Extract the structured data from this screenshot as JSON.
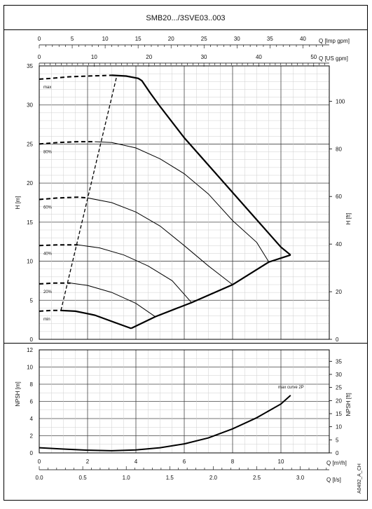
{
  "title": "SMB20.../3SVE03..003",
  "doc_code": "A0492_A_CH",
  "chart_data": [
    {
      "type": "line",
      "name": "H-Q performance chart",
      "ylabel_left": "H [m]",
      "ylabel_right": "H [ft]",
      "top_axis_1_label": "Q [Imp gpm]",
      "top_axis_2_label": "Q [US gpm]",
      "ylim": [
        0,
        35
      ],
      "xlim": [
        0,
        12
      ],
      "yticks_left": [
        0,
        5,
        10,
        15,
        20,
        25,
        30,
        35
      ],
      "yticks_right": [
        0,
        20,
        40,
        60,
        80,
        100
      ],
      "top_ticks_imp": [
        0,
        5,
        10,
        15,
        20,
        25,
        30,
        35,
        40
      ],
      "top_ticks_us": [
        0,
        10,
        20,
        30,
        40,
        50
      ],
      "grid": true,
      "curve_labels": [
        "max",
        "80%",
        "60%",
        "40%",
        "20%",
        "min"
      ],
      "series": [
        {
          "label": "max",
          "solid": [
            [
              3.0,
              33.8
            ],
            [
              3.6,
              33.7
            ],
            [
              4.1,
              33.4
            ],
            [
              4.25,
              33.1
            ],
            [
              4.6,
              31.5
            ],
            [
              5.0,
              29.8
            ],
            [
              6.0,
              25.8
            ],
            [
              7.0,
              22.3
            ],
            [
              8.0,
              18.8
            ],
            [
              9.0,
              15.3
            ],
            [
              10.0,
              11.8
            ],
            [
              10.4,
              10.8
            ]
          ],
          "dashed": [
            [
              0.0,
              33.3
            ],
            [
              0.5,
              33.4
            ],
            [
              1.2,
              33.6
            ],
            [
              2.0,
              33.7
            ],
            [
              3.0,
              33.8
            ]
          ]
        },
        {
          "label": "80%",
          "solid": [
            [
              2.3,
              25.3
            ],
            [
              3.0,
              25.2
            ],
            [
              4.0,
              24.5
            ],
            [
              5.0,
              23.1
            ],
            [
              6.0,
              21.2
            ],
            [
              7.0,
              18.6
            ],
            [
              8.0,
              15.2
            ],
            [
              9.0,
              12.4
            ],
            [
              9.5,
              9.9
            ]
          ],
          "dashed": [
            [
              0.0,
              25.0
            ],
            [
              0.8,
              25.2
            ],
            [
              1.6,
              25.3
            ],
            [
              2.3,
              25.3
            ]
          ]
        },
        {
          "label": "60%",
          "solid": [
            [
              2.0,
              18.1
            ],
            [
              3.0,
              17.5
            ],
            [
              4.0,
              16.3
            ],
            [
              5.0,
              14.5
            ],
            [
              6.0,
              12.0
            ],
            [
              7.0,
              9.4
            ],
            [
              8.0,
              7.0
            ]
          ],
          "dashed": [
            [
              0.0,
              17.9
            ],
            [
              0.8,
              18.1
            ],
            [
              1.6,
              18.2
            ],
            [
              2.0,
              18.1
            ]
          ]
        },
        {
          "label": "40%",
          "solid": [
            [
              1.6,
              12.1
            ],
            [
              2.5,
              11.7
            ],
            [
              3.5,
              10.8
            ],
            [
              4.5,
              9.4
            ],
            [
              5.5,
              7.5
            ],
            [
              6.3,
              4.7
            ]
          ],
          "dashed": [
            [
              0.0,
              12.0
            ],
            [
              0.8,
              12.1
            ],
            [
              1.6,
              12.1
            ]
          ]
        },
        {
          "label": "20%",
          "solid": [
            [
              1.3,
              7.2
            ],
            [
              2.0,
              6.9
            ],
            [
              3.0,
              6.0
            ],
            [
              4.0,
              4.6
            ],
            [
              4.8,
              2.9
            ]
          ],
          "dashed": [
            [
              0.0,
              7.1
            ],
            [
              0.6,
              7.2
            ],
            [
              1.3,
              7.2
            ]
          ]
        },
        {
          "label": "min",
          "solid": [
            [
              0.9,
              3.7
            ],
            [
              1.5,
              3.6
            ],
            [
              2.3,
              3.1
            ],
            [
              3.0,
              2.3
            ],
            [
              3.8,
              1.4
            ]
          ],
          "dashed": [
            [
              0.0,
              3.6
            ],
            [
              0.5,
              3.7
            ],
            [
              0.9,
              3.7
            ]
          ]
        }
      ],
      "operating_limit_curve": [
        [
          3.8,
          1.4
        ],
        [
          4.8,
          2.9
        ],
        [
          6.3,
          4.7
        ],
        [
          8.0,
          7.0
        ],
        [
          9.5,
          9.9
        ],
        [
          10.4,
          10.8
        ]
      ],
      "min_flow_boundary": [
        [
          0.9,
          3.7
        ],
        [
          3.2,
          33.6
        ]
      ]
    },
    {
      "type": "line",
      "name": "NPSH chart",
      "ylabel_left": "NPSH [m]",
      "ylabel_right": "NPSH [ft]",
      "xlabel_1": "Q [m³/h]",
      "xlabel_2": "Q [l/s]",
      "ylim": [
        0,
        12
      ],
      "xlim": [
        0,
        12
      ],
      "yticks_left": [
        0,
        2,
        4,
        6,
        8,
        10,
        12
      ],
      "yticks_right": [
        0,
        5,
        10,
        15,
        20,
        25,
        30,
        35
      ],
      "xticks_m3h": [
        0,
        2,
        4,
        6,
        8,
        10
      ],
      "xticks_ls": [
        "0.0",
        "0.5",
        "1.0",
        "1.5",
        "2.0",
        "2.5",
        "3.0"
      ],
      "grid": true,
      "annotation": "max curve 2P",
      "series": [
        {
          "label": "max curve 2P",
          "points": [
            [
              0.0,
              0.6
            ],
            [
              1.0,
              0.45
            ],
            [
              2.0,
              0.32
            ],
            [
              3.0,
              0.25
            ],
            [
              4.0,
              0.35
            ],
            [
              5.0,
              0.6
            ],
            [
              6.0,
              1.05
            ],
            [
              7.0,
              1.75
            ],
            [
              8.0,
              2.8
            ],
            [
              9.0,
              4.1
            ],
            [
              10.0,
              5.7
            ],
            [
              10.4,
              6.7
            ]
          ]
        }
      ]
    }
  ]
}
